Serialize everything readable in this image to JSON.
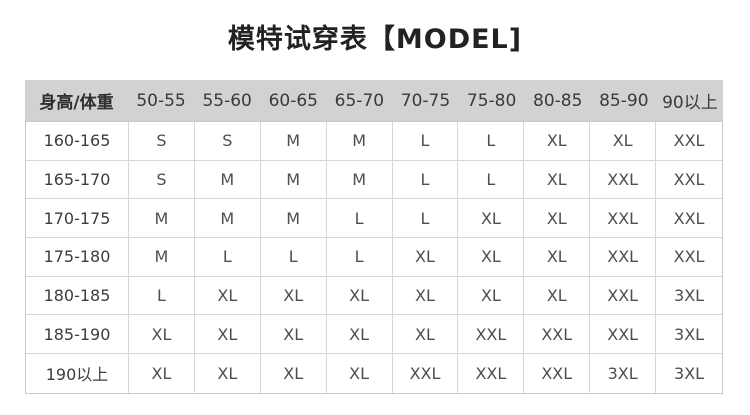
{
  "title": "模特试穿表【MODEL]",
  "table": {
    "header": [
      "身高/体重",
      "50-55",
      "55-60",
      "60-65",
      "65-70",
      "70-75",
      "75-80",
      "80-85",
      "85-90",
      "90以上"
    ],
    "rows": [
      {
        "label": "160-165",
        "values": [
          "S",
          "S",
          "M",
          "M",
          "L",
          "L",
          "XL",
          "XL",
          "XXL"
        ]
      },
      {
        "label": "165-170",
        "values": [
          "S",
          "M",
          "M",
          "M",
          "L",
          "L",
          "XL",
          "XXL",
          "XXL"
        ]
      },
      {
        "label": "170-175",
        "values": [
          "M",
          "M",
          "M",
          "L",
          "L",
          "XL",
          "XL",
          "XXL",
          "XXL"
        ]
      },
      {
        "label": "175-180",
        "values": [
          "M",
          "L",
          "L",
          "L",
          "XL",
          "XL",
          "XL",
          "XXL",
          "XXL"
        ]
      },
      {
        "label": "180-185",
        "values": [
          "L",
          "XL",
          "XL",
          "XL",
          "XL",
          "XL",
          "XL",
          "XXL",
          "3XL"
        ]
      },
      {
        "label": "185-190",
        "values": [
          "XL",
          "XL",
          "XL",
          "XL",
          "XL",
          "XXL",
          "XXL",
          "XXL",
          "3XL"
        ]
      },
      {
        "label": "190以上",
        "values": [
          "XL",
          "XL",
          "XL",
          "XL",
          "XXL",
          "XXL",
          "XXL",
          "3XL",
          "3XL"
        ]
      }
    ]
  },
  "colors": {
    "header_bg": "#d2d2d2",
    "cell_border": "#d7d7d7",
    "outer_border": "#c9c9c9",
    "title_text": "#222222",
    "body_text": "#4e4e4e"
  }
}
